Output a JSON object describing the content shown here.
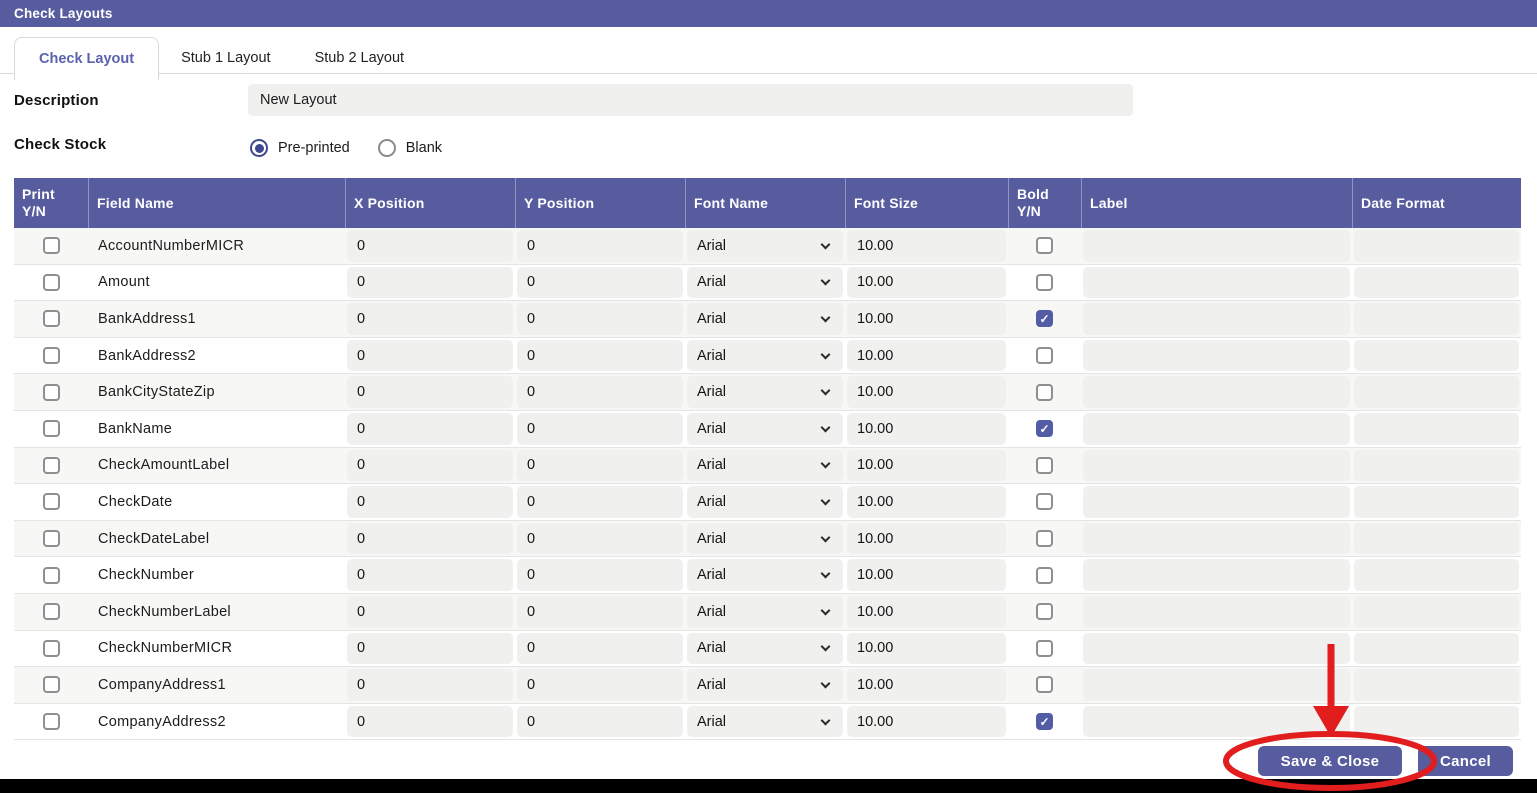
{
  "window": {
    "title": "Check Layouts"
  },
  "tabs": [
    {
      "label": "Check Layout",
      "active": true
    },
    {
      "label": "Stub 1 Layout",
      "active": false
    },
    {
      "label": "Stub 2 Layout",
      "active": false
    }
  ],
  "form": {
    "description_label": "Description",
    "description_value": "New Layout",
    "check_stock_label": "Check Stock",
    "check_stock_options": [
      {
        "label": "Pre-printed",
        "selected": true
      },
      {
        "label": "Blank",
        "selected": false
      }
    ]
  },
  "table": {
    "columns": [
      {
        "key": "print",
        "label": "Print Y/N"
      },
      {
        "key": "field_name",
        "label": "Field Name"
      },
      {
        "key": "x_position",
        "label": "X Position"
      },
      {
        "key": "y_position",
        "label": "Y Position"
      },
      {
        "key": "font_name",
        "label": "Font Name"
      },
      {
        "key": "font_size",
        "label": "Font Size"
      },
      {
        "key": "bold",
        "label": "Bold Y/N"
      },
      {
        "key": "label",
        "label": "Label"
      },
      {
        "key": "date_format",
        "label": "Date Format"
      }
    ],
    "rows": [
      {
        "print": false,
        "field_name": "AccountNumberMICR",
        "x_position": "0",
        "y_position": "0",
        "font_name": "Arial",
        "font_size": "10.00",
        "bold": false,
        "label": "",
        "date_format": ""
      },
      {
        "print": false,
        "field_name": "Amount",
        "x_position": "0",
        "y_position": "0",
        "font_name": "Arial",
        "font_size": "10.00",
        "bold": false,
        "label": "",
        "date_format": ""
      },
      {
        "print": false,
        "field_name": "BankAddress1",
        "x_position": "0",
        "y_position": "0",
        "font_name": "Arial",
        "font_size": "10.00",
        "bold": true,
        "label": "",
        "date_format": ""
      },
      {
        "print": false,
        "field_name": "BankAddress2",
        "x_position": "0",
        "y_position": "0",
        "font_name": "Arial",
        "font_size": "10.00",
        "bold": false,
        "label": "",
        "date_format": ""
      },
      {
        "print": false,
        "field_name": "BankCityStateZip",
        "x_position": "0",
        "y_position": "0",
        "font_name": "Arial",
        "font_size": "10.00",
        "bold": false,
        "label": "",
        "date_format": ""
      },
      {
        "print": false,
        "field_name": "BankName",
        "x_position": "0",
        "y_position": "0",
        "font_name": "Arial",
        "font_size": "10.00",
        "bold": true,
        "label": "",
        "date_format": ""
      },
      {
        "print": false,
        "field_name": "CheckAmountLabel",
        "x_position": "0",
        "y_position": "0",
        "font_name": "Arial",
        "font_size": "10.00",
        "bold": false,
        "label": "",
        "date_format": ""
      },
      {
        "print": false,
        "field_name": "CheckDate",
        "x_position": "0",
        "y_position": "0",
        "font_name": "Arial",
        "font_size": "10.00",
        "bold": false,
        "label": "",
        "date_format": ""
      },
      {
        "print": false,
        "field_name": "CheckDateLabel",
        "x_position": "0",
        "y_position": "0",
        "font_name": "Arial",
        "font_size": "10.00",
        "bold": false,
        "label": "",
        "date_format": ""
      },
      {
        "print": false,
        "field_name": "CheckNumber",
        "x_position": "0",
        "y_position": "0",
        "font_name": "Arial",
        "font_size": "10.00",
        "bold": false,
        "label": "",
        "date_format": ""
      },
      {
        "print": false,
        "field_name": "CheckNumberLabel",
        "x_position": "0",
        "y_position": "0",
        "font_name": "Arial",
        "font_size": "10.00",
        "bold": false,
        "label": "",
        "date_format": ""
      },
      {
        "print": false,
        "field_name": "CheckNumberMICR",
        "x_position": "0",
        "y_position": "0",
        "font_name": "Arial",
        "font_size": "10.00",
        "bold": false,
        "label": "",
        "date_format": ""
      },
      {
        "print": false,
        "field_name": "CompanyAddress1",
        "x_position": "0",
        "y_position": "0",
        "font_name": "Arial",
        "font_size": "10.00",
        "bold": false,
        "label": "",
        "date_format": ""
      },
      {
        "print": false,
        "field_name": "CompanyAddress2",
        "x_position": "0",
        "y_position": "0",
        "font_name": "Arial",
        "font_size": "10.00",
        "bold": true,
        "label": "",
        "date_format": ""
      }
    ]
  },
  "buttons": {
    "save_label": "Save & Close",
    "cancel_label": "Cancel"
  },
  "colors": {
    "accent_purple": "#575c9e",
    "active_tab_text": "#5a62ad",
    "checked_checkbox": "#535da6",
    "radio_selected": "#3e478f",
    "input_gray": "#f0f0ee",
    "annotation_red": "#e11d1d",
    "bottom_bar_black": "#000000"
  }
}
